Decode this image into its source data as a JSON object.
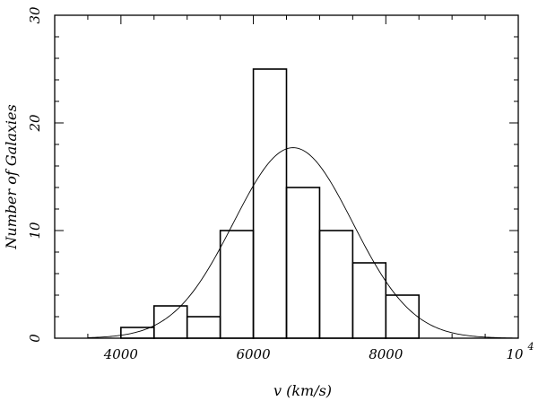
{
  "chart_data": {
    "type": "bar",
    "title": "",
    "xlabel": "v (km/s)",
    "ylabel": "Number of Galaxies",
    "xlim": [
      3000,
      10000
    ],
    "ylim": [
      0,
      30
    ],
    "grid": false,
    "bins": [
      {
        "x0": 3500,
        "x1": 4000,
        "count": 0
      },
      {
        "x0": 4000,
        "x1": 4500,
        "count": 1
      },
      {
        "x0": 4500,
        "x1": 5000,
        "count": 3
      },
      {
        "x0": 5000,
        "x1": 5500,
        "count": 2
      },
      {
        "x0": 5500,
        "x1": 6000,
        "count": 10
      },
      {
        "x0": 6000,
        "x1": 6500,
        "count": 25
      },
      {
        "x0": 6500,
        "x1": 7000,
        "count": 14
      },
      {
        "x0": 7000,
        "x1": 7500,
        "count": 10
      },
      {
        "x0": 7500,
        "x1": 8000,
        "count": 7
      },
      {
        "x0": 8000,
        "x1": 8500,
        "count": 4
      }
    ],
    "fit_curve": {
      "type": "gaussian",
      "mean": 6600,
      "sigma": 900,
      "peak": 17.7
    },
    "x_ticks": [
      {
        "value": 4000,
        "label": "4000"
      },
      {
        "value": 6000,
        "label": "6000"
      },
      {
        "value": 8000,
        "label": "8000"
      },
      {
        "value": 10000,
        "label": "10",
        "exponent": "4"
      }
    ],
    "y_ticks": [
      {
        "value": 0,
        "label": "0"
      },
      {
        "value": 10,
        "label": "10"
      },
      {
        "value": 20,
        "label": "20"
      },
      {
        "value": 30,
        "label": "30"
      }
    ]
  }
}
